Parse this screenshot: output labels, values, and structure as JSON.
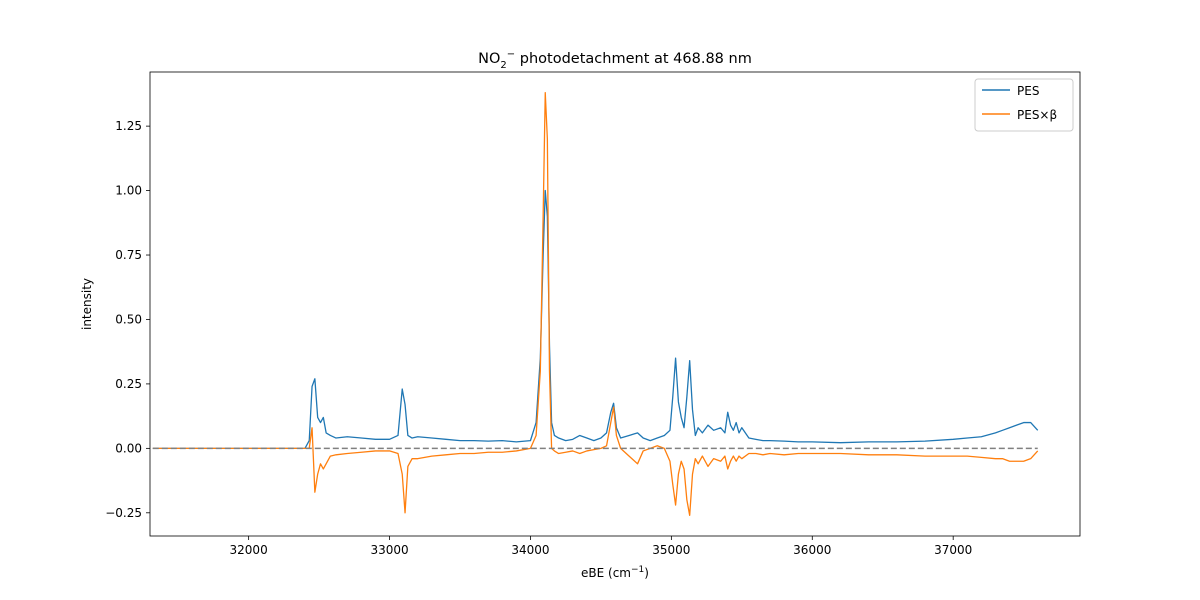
{
  "chart_data": {
    "type": "line",
    "title": {
      "prefix": "NO",
      "sub": "2",
      "sup": "−",
      "rest": " photodetachment at 468.88 nm"
    },
    "xlabel": {
      "prefix": "eBE (cm",
      "sup": "−1",
      "suffix": ")"
    },
    "ylabel": "intensity",
    "xlim": [
      31300,
      37900
    ],
    "ylim": [
      -0.34,
      1.46
    ],
    "xticks": [
      32000,
      33000,
      34000,
      35000,
      36000,
      37000
    ],
    "xtick_labels": [
      "32000",
      "33000",
      "34000",
      "35000",
      "36000",
      "37000"
    ],
    "yticks": [
      -0.25,
      0,
      0.25,
      0.5,
      0.75,
      1.0,
      1.25
    ],
    "ytick_labels": [
      "−0.25",
      "0.00",
      "0.25",
      "0.50",
      "0.75",
      "1.00",
      "1.25"
    ],
    "grid": false,
    "legend_position": "top-right",
    "baseline": {
      "y": 0,
      "x_range": [
        31320,
        37600
      ],
      "style": "dashed",
      "color": "#808080"
    },
    "series": [
      {
        "name": "PES",
        "color": "#1f77b4",
        "x": [
          31320,
          32000,
          32400,
          32430,
          32450,
          32470,
          32490,
          32510,
          32530,
          32550,
          32580,
          32620,
          32700,
          32800,
          32900,
          33000,
          33060,
          33090,
          33110,
          33130,
          33160,
          33200,
          33300,
          33400,
          33500,
          33600,
          33700,
          33800,
          33900,
          34000,
          34040,
          34070,
          34090,
          34105,
          34120,
          34135,
          34150,
          34170,
          34200,
          34250,
          34300,
          34350,
          34400,
          34450,
          34500,
          34540,
          34570,
          34590,
          34610,
          34640,
          34700,
          34760,
          34800,
          34850,
          34900,
          34950,
          34990,
          35010,
          35030,
          35050,
          35070,
          35090,
          35110,
          35130,
          35150,
          35170,
          35190,
          35220,
          35260,
          35300,
          35350,
          35380,
          35400,
          35420,
          35440,
          35460,
          35480,
          35500,
          35550,
          35600,
          35650,
          35700,
          35800,
          35900,
          36000,
          36200,
          36400,
          36600,
          36800,
          37000,
          37100,
          37200,
          37300,
          37350,
          37400,
          37450,
          37500,
          37550,
          37600
        ],
        "y": [
          0.0,
          0.0,
          0.0,
          0.03,
          0.24,
          0.27,
          0.12,
          0.1,
          0.12,
          0.06,
          0.05,
          0.04,
          0.045,
          0.04,
          0.035,
          0.035,
          0.05,
          0.23,
          0.17,
          0.05,
          0.04,
          0.045,
          0.04,
          0.035,
          0.03,
          0.03,
          0.028,
          0.03,
          0.025,
          0.03,
          0.1,
          0.35,
          0.75,
          1.0,
          0.9,
          0.4,
          0.1,
          0.05,
          0.04,
          0.03,
          0.035,
          0.05,
          0.04,
          0.03,
          0.04,
          0.06,
          0.14,
          0.175,
          0.08,
          0.04,
          0.05,
          0.06,
          0.04,
          0.03,
          0.04,
          0.05,
          0.07,
          0.2,
          0.35,
          0.18,
          0.12,
          0.08,
          0.2,
          0.34,
          0.15,
          0.05,
          0.08,
          0.06,
          0.09,
          0.07,
          0.08,
          0.06,
          0.14,
          0.09,
          0.07,
          0.1,
          0.06,
          0.08,
          0.04,
          0.035,
          0.03,
          0.03,
          0.028,
          0.025,
          0.025,
          0.022,
          0.025,
          0.025,
          0.028,
          0.035,
          0.04,
          0.045,
          0.06,
          0.07,
          0.08,
          0.09,
          0.1,
          0.1,
          0.07
        ]
      },
      {
        "name": "PES×β",
        "color": "#ff7f0e",
        "x": [
          31320,
          32000,
          32400,
          32430,
          32450,
          32470,
          32490,
          32510,
          32530,
          32550,
          32580,
          32620,
          32700,
          32800,
          32900,
          33000,
          33060,
          33090,
          33110,
          33130,
          33160,
          33200,
          33300,
          33400,
          33500,
          33600,
          33700,
          33800,
          33900,
          34000,
          34040,
          34070,
          34090,
          34105,
          34120,
          34135,
          34150,
          34170,
          34200,
          34250,
          34300,
          34350,
          34400,
          34450,
          34500,
          34540,
          34570,
          34590,
          34610,
          34640,
          34700,
          34760,
          34800,
          34850,
          34900,
          34950,
          34990,
          35010,
          35030,
          35050,
          35070,
          35090,
          35110,
          35130,
          35150,
          35170,
          35190,
          35220,
          35260,
          35300,
          35350,
          35380,
          35400,
          35420,
          35440,
          35460,
          35480,
          35500,
          35550,
          35600,
          35650,
          35700,
          35800,
          35900,
          36000,
          36200,
          36400,
          36600,
          36800,
          37000,
          37100,
          37200,
          37300,
          37350,
          37400,
          37450,
          37500,
          37550,
          37600
        ],
        "y": [
          0.0,
          0.0,
          0.0,
          0.0,
          0.08,
          -0.17,
          -0.1,
          -0.06,
          -0.08,
          -0.06,
          -0.03,
          -0.025,
          -0.02,
          -0.015,
          -0.01,
          -0.01,
          -0.02,
          -0.1,
          -0.25,
          -0.07,
          -0.04,
          -0.04,
          -0.03,
          -0.025,
          -0.02,
          -0.02,
          -0.015,
          -0.015,
          -0.01,
          0.0,
          0.05,
          0.3,
          0.9,
          1.38,
          1.2,
          0.3,
          0.0,
          -0.01,
          -0.02,
          -0.015,
          -0.01,
          -0.02,
          -0.01,
          -0.005,
          0.0,
          0.01,
          0.1,
          0.16,
          0.05,
          0.0,
          -0.03,
          -0.06,
          -0.01,
          0.0,
          0.01,
          0.0,
          -0.05,
          -0.14,
          -0.22,
          -0.1,
          -0.05,
          -0.08,
          -0.2,
          -0.26,
          -0.1,
          -0.04,
          -0.06,
          -0.03,
          -0.07,
          -0.04,
          -0.05,
          -0.03,
          -0.08,
          -0.05,
          -0.03,
          -0.05,
          -0.03,
          -0.04,
          -0.02,
          -0.02,
          -0.025,
          -0.02,
          -0.025,
          -0.02,
          -0.02,
          -0.02,
          -0.025,
          -0.025,
          -0.03,
          -0.03,
          -0.03,
          -0.035,
          -0.04,
          -0.04,
          -0.05,
          -0.05,
          -0.05,
          -0.04,
          -0.01
        ]
      }
    ]
  }
}
